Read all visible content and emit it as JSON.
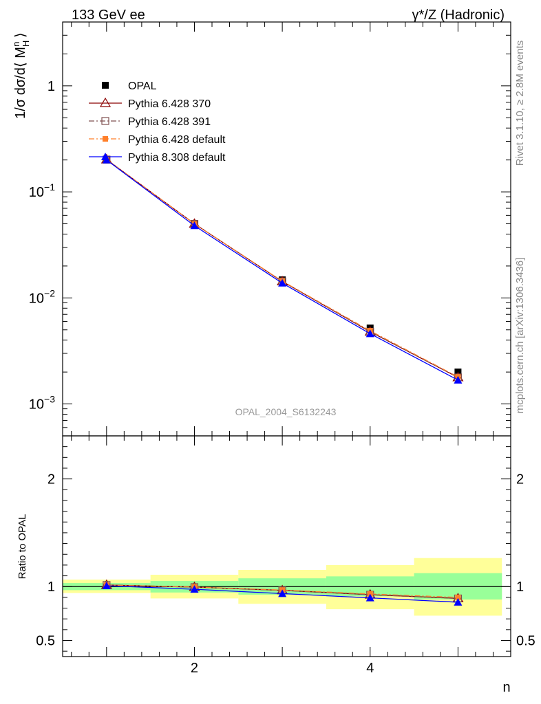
{
  "header": {
    "left": "133 GeV ee",
    "right": "γ*/Z (Hadronic)"
  },
  "side": {
    "rivet": "Rivet 3.1.10, ≥ 2.8M events",
    "mcplots": "mcplots.cern.ch [arXiv:1306.3436]"
  },
  "watermark": "OPAL_2004_S6132243",
  "colors": {
    "data": "#000000",
    "py370": "#8b0000",
    "py391": "#7f4f4f",
    "pydef": "#ff7f2a",
    "py8": "#0000ff",
    "band_inner": "#99ff99",
    "band_outer": "#ffff99"
  },
  "chart_data": [
    {
      "type": "scatter",
      "panel": "main",
      "ylabel": "1/σ dσ/d⟨ M_H^n ⟩",
      "xlabel": "n",
      "yscale": "log",
      "ylim": [
        0.0005,
        4
      ],
      "xlim": [
        0.5,
        5.6
      ],
      "ytick_labels": [
        "1",
        "10^-1",
        "10^-2",
        "10^-3"
      ],
      "legend_position": "top-left",
      "x": [
        1,
        2,
        3,
        4,
        5
      ],
      "series": [
        {
          "name": "OPAL",
          "marker": "filled-square",
          "values": [
            0.2,
            0.05,
            0.0148,
            0.0052,
            0.002
          ]
        },
        {
          "name": "Pythia 6.428 370",
          "marker": "open-triangle",
          "line": "solid",
          "values": [
            0.202,
            0.05,
            0.0143,
            0.0048,
            0.00178
          ]
        },
        {
          "name": "Pythia 6.428 391",
          "marker": "open-square",
          "line": "dashdot",
          "values": [
            0.202,
            0.05,
            0.0143,
            0.0048,
            0.00178
          ]
        },
        {
          "name": "Pythia 6.428 default",
          "marker": "filled-square-small",
          "line": "dashdot",
          "values": [
            0.202,
            0.05,
            0.0144,
            0.0049,
            0.0018
          ]
        },
        {
          "name": "Pythia 8.308 default",
          "marker": "filled-triangle",
          "line": "solid",
          "values": [
            0.2,
            0.048,
            0.0138,
            0.0046,
            0.00168
          ]
        }
      ]
    },
    {
      "type": "line",
      "panel": "ratio",
      "ylabel": "Ratio to OPAL",
      "xlabel": "n",
      "ylim": [
        0.35,
        2.4
      ],
      "xlim": [
        0.5,
        5.6
      ],
      "ytick_labels": [
        "0.5",
        "1",
        "2"
      ],
      "xtick_labels": [
        "2",
        "4"
      ],
      "x": [
        1,
        2,
        3,
        4,
        5
      ],
      "bands": [
        {
          "xmin": 0.5,
          "xmax": 1.5,
          "inner": [
            0.967,
            1.033
          ],
          "outer": [
            0.94,
            1.065
          ]
        },
        {
          "xmin": 1.5,
          "xmax": 2.5,
          "inner": [
            0.945,
            1.052
          ],
          "outer": [
            0.89,
            1.11
          ]
        },
        {
          "xmin": 2.5,
          "xmax": 3.5,
          "inner": [
            0.925,
            1.077
          ],
          "outer": [
            0.84,
            1.155
          ]
        },
        {
          "xmin": 3.5,
          "xmax": 4.5,
          "inner": [
            0.91,
            1.095
          ],
          "outer": [
            0.79,
            1.2
          ]
        },
        {
          "xmin": 4.5,
          "xmax": 5.5,
          "inner": [
            0.88,
            1.125
          ],
          "outer": [
            0.73,
            1.265
          ]
        }
      ],
      "series": [
        {
          "name": "Pythia 6.428 370",
          "values": [
            1.015,
            0.995,
            0.965,
            0.925,
            0.89
          ]
        },
        {
          "name": "Pythia 6.428 391",
          "values": [
            1.015,
            0.995,
            0.965,
            0.925,
            0.89
          ]
        },
        {
          "name": "Pythia 6.428 default",
          "values": [
            1.013,
            0.997,
            0.968,
            0.932,
            0.9
          ]
        },
        {
          "name": "Pythia 8.308 default",
          "values": [
            1.008,
            0.975,
            0.935,
            0.895,
            0.855
          ]
        }
      ]
    }
  ]
}
